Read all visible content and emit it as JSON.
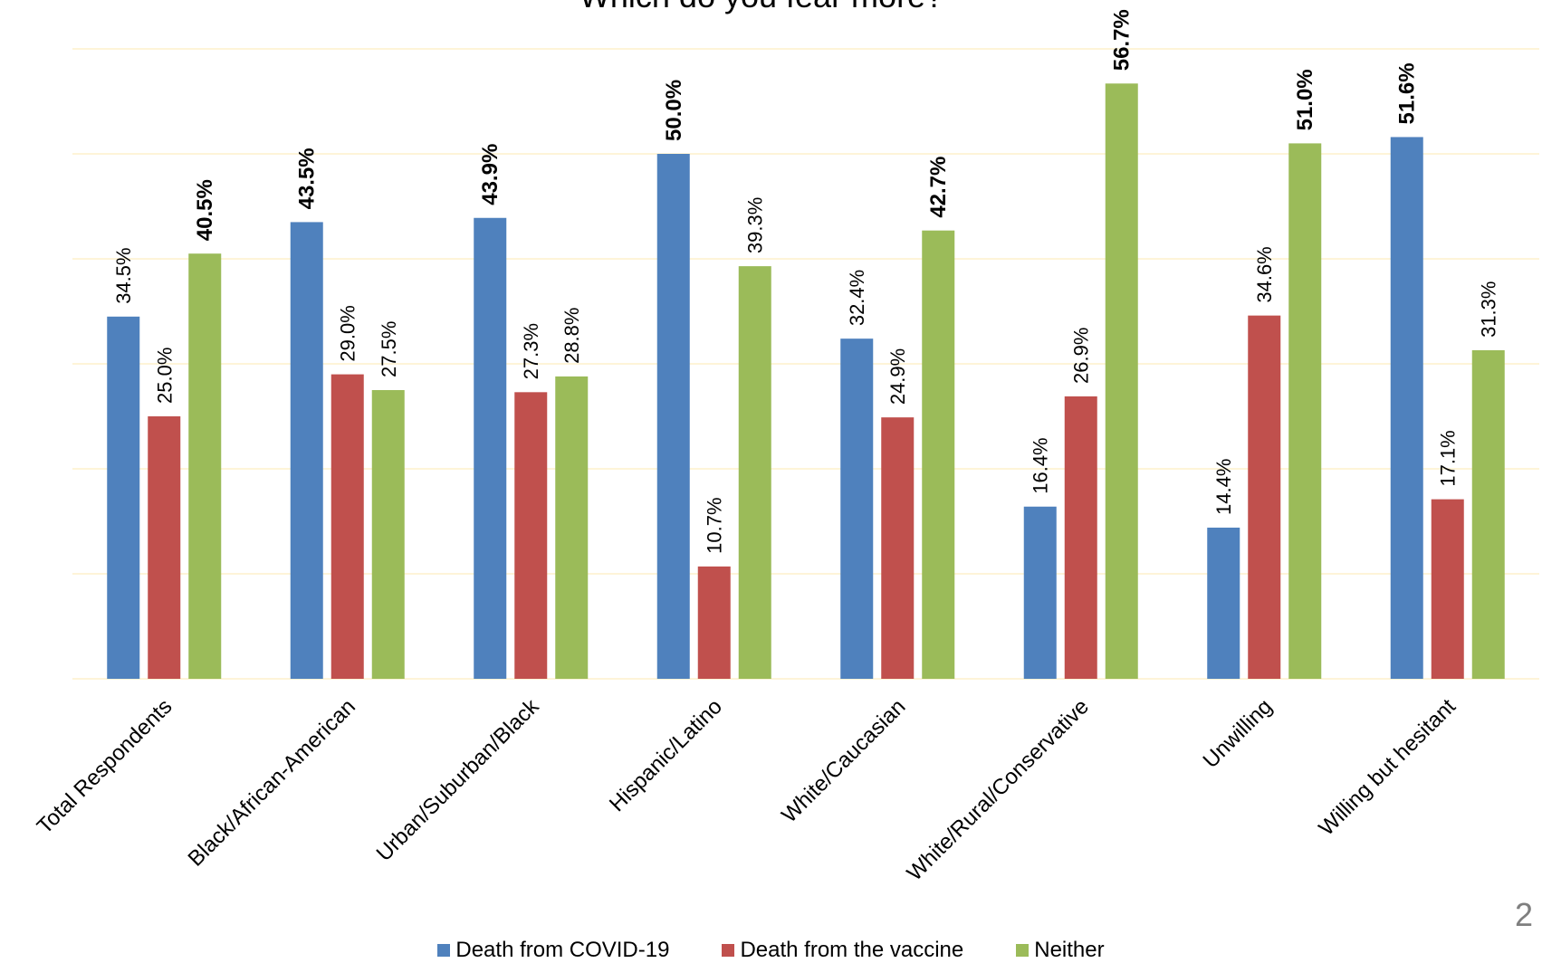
{
  "page_number": "2",
  "chart_data": {
    "type": "bar",
    "title": "Which do you fear more?",
    "xlabel": "",
    "ylabel": "",
    "ylim": [
      0,
      60
    ],
    "grid": true,
    "legend_position": "bottom",
    "categories": [
      "Total Respondents",
      "Black/African-American",
      "Urban/Suburban/Black",
      "Hispanic/Latino",
      "White/Caucasian",
      "White/Rural/Conservative",
      "Unwilling",
      "Willing but hesitant"
    ],
    "series": [
      {
        "name": "Death from COVID-19",
        "color": "#4f81bd",
        "values": [
          34.5,
          43.5,
          43.9,
          50.0,
          32.4,
          16.4,
          14.4,
          51.6
        ],
        "labels": [
          "34.5%",
          "43.5%",
          "43.9%",
          "50.0%",
          "32.4%",
          "16.4%",
          "14.4%",
          "51.6%"
        ]
      },
      {
        "name": "Death from the vaccine",
        "color": "#c0504d",
        "values": [
          25.0,
          29.0,
          27.3,
          10.7,
          24.9,
          26.9,
          34.6,
          17.1
        ],
        "labels": [
          "25.0%",
          "29.0%",
          "27.3%",
          "10.7%",
          "24.9%",
          "26.9%",
          "34.6%",
          "17.1%"
        ]
      },
      {
        "name": "Neither",
        "color": "#9bbb59",
        "values": [
          40.5,
          27.5,
          28.8,
          39.3,
          42.7,
          56.7,
          51.0,
          31.3
        ],
        "labels": [
          "40.5%",
          "27.5%",
          "28.8%",
          "39.3%",
          "42.7%",
          "56.7%",
          "51.0%",
          "31.3%"
        ]
      }
    ]
  }
}
